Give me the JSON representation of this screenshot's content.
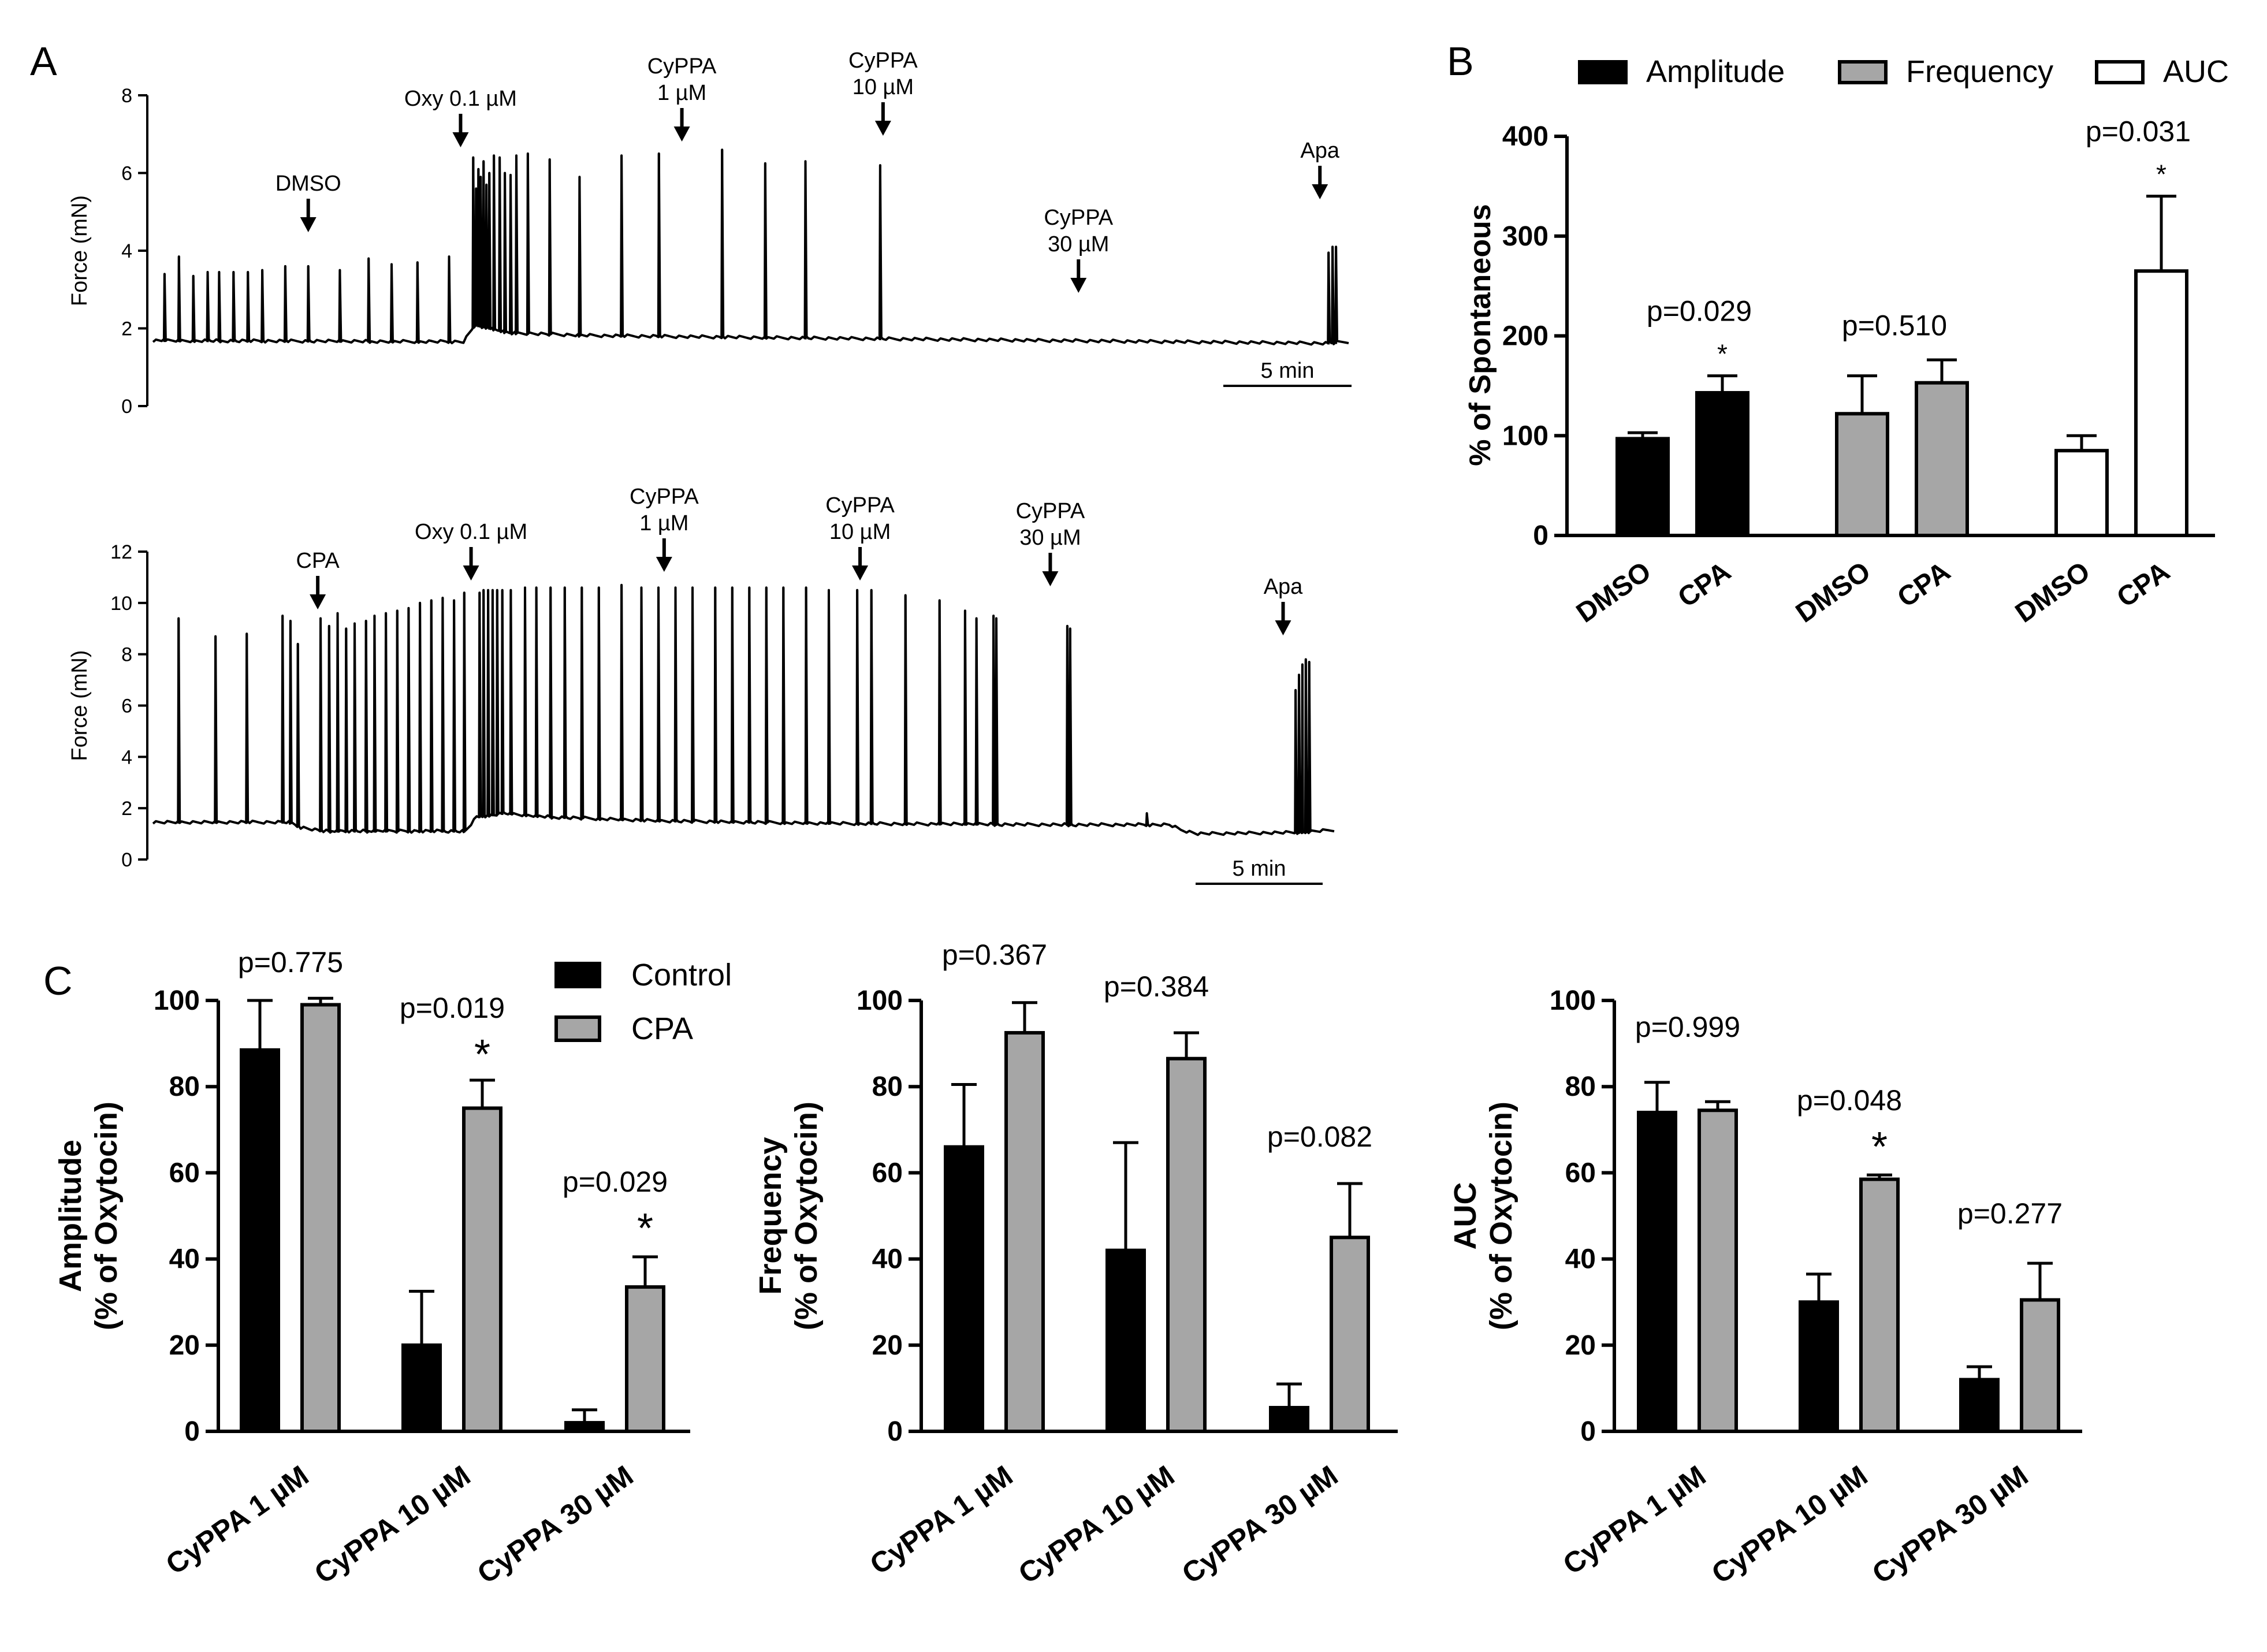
{
  "colors": {
    "black": "#000000",
    "gray": "#a6a6a6",
    "white": "#ffffff"
  },
  "panel_labels": [
    "A",
    "B",
    "C"
  ],
  "chart_data": [
    {
      "id": "A_top",
      "type": "line",
      "title": "",
      "ylabel": "Force (mN)",
      "ylim": [
        0,
        8
      ],
      "yticks": [
        0,
        2,
        4,
        6,
        8
      ],
      "xlim": [
        0,
        2080
      ],
      "scalebar": "5 min",
      "baseline": [
        [
          0,
          1.65
        ],
        [
          540,
          1.62
        ],
        [
          560,
          2.05
        ],
        [
          620,
          1.85
        ],
        [
          760,
          1.78
        ],
        [
          1100,
          1.72
        ],
        [
          1500,
          1.66
        ],
        [
          2040,
          1.58
        ],
        [
          2080,
          1.62
        ]
      ],
      "peaks": [
        [
          20,
          3.4
        ],
        [
          45,
          3.85
        ],
        [
          70,
          3.35
        ],
        [
          95,
          3.45
        ],
        [
          115,
          3.45
        ],
        [
          140,
          3.45
        ],
        [
          165,
          3.45
        ],
        [
          190,
          3.5
        ],
        [
          230,
          3.6
        ],
        [
          270,
          3.6
        ],
        [
          325,
          3.5
        ],
        [
          375,
          3.8
        ],
        [
          415,
          3.65
        ],
        [
          460,
          3.7
        ],
        [
          515,
          3.85
        ],
        [
          557,
          6.4
        ],
        [
          562,
          5.6
        ],
        [
          566,
          6.1
        ],
        [
          570,
          5.9
        ],
        [
          575,
          6.3
        ],
        [
          580,
          5.7
        ],
        [
          585,
          6.0
        ],
        [
          593,
          6.45
        ],
        [
          603,
          6.4
        ],
        [
          612,
          6.0
        ],
        [
          622,
          5.95
        ],
        [
          632,
          6.45
        ],
        [
          652,
          6.5
        ],
        [
          690,
          6.35
        ],
        [
          742,
          5.9
        ],
        [
          815,
          6.45
        ],
        [
          880,
          6.5
        ],
        [
          990,
          6.6
        ],
        [
          1065,
          6.25
        ],
        [
          1135,
          6.3
        ],
        [
          1265,
          6.2
        ],
        [
          2045,
          3.95
        ],
        [
          2052,
          4.1
        ],
        [
          2058,
          4.1
        ]
      ],
      "annotations": [
        {
          "text": [
            "DMSO"
          ],
          "x": 270
        },
        {
          "text": [
            "Oxy 0.1 µM"
          ],
          "x": 535
        },
        {
          "text": [
            "CyPPA",
            "1 µM"
          ],
          "x": 920
        },
        {
          "text": [
            "CyPPA",
            "10 µM"
          ],
          "x": 1270
        },
        {
          "text": [
            "CyPPA",
            "30 µM"
          ],
          "x": 1610
        },
        {
          "text": [
            "Apa"
          ],
          "x": 2030
        }
      ]
    },
    {
      "id": "A_bottom",
      "type": "line",
      "title": "",
      "ylabel": "Force (mN)",
      "ylim": [
        0,
        12
      ],
      "yticks": [
        0,
        2,
        4,
        6,
        8,
        10,
        12
      ],
      "xlim": [
        0,
        2080
      ],
      "scalebar": "5 min",
      "baseline": [
        [
          0,
          1.4
        ],
        [
          240,
          1.4
        ],
        [
          260,
          1.2
        ],
        [
          300,
          1.05
        ],
        [
          550,
          1.05
        ],
        [
          570,
          1.6
        ],
        [
          620,
          1.75
        ],
        [
          700,
          1.6
        ],
        [
          900,
          1.45
        ],
        [
          1200,
          1.35
        ],
        [
          1600,
          1.3
        ],
        [
          1790,
          1.3
        ],
        [
          1810,
          1.1
        ],
        [
          1840,
          0.95
        ],
        [
          2020,
          1.0
        ],
        [
          2080,
          1.1
        ]
      ],
      "peaks": [
        [
          45,
          9.4
        ],
        [
          110,
          8.7
        ],
        [
          165,
          8.8
        ],
        [
          228,
          9.5
        ],
        [
          242,
          9.3
        ],
        [
          255,
          8.4
        ],
        [
          295,
          9.4
        ],
        [
          310,
          9.1
        ],
        [
          325,
          9.6
        ],
        [
          340,
          9.0
        ],
        [
          355,
          9.2
        ],
        [
          375,
          9.3
        ],
        [
          390,
          9.5
        ],
        [
          410,
          9.6
        ],
        [
          430,
          9.7
        ],
        [
          450,
          9.8
        ],
        [
          470,
          10.0
        ],
        [
          490,
          10.1
        ],
        [
          510,
          10.2
        ],
        [
          530,
          10.1
        ],
        [
          548,
          10.4
        ],
        [
          575,
          10.4
        ],
        [
          582,
          10.5
        ],
        [
          590,
          10.5
        ],
        [
          598,
          10.5
        ],
        [
          606,
          10.5
        ],
        [
          615,
          10.5
        ],
        [
          630,
          10.5
        ],
        [
          655,
          10.6
        ],
        [
          675,
          10.6
        ],
        [
          700,
          10.6
        ],
        [
          725,
          10.6
        ],
        [
          755,
          10.6
        ],
        [
          785,
          10.6
        ],
        [
          825,
          10.7
        ],
        [
          860,
          10.6
        ],
        [
          890,
          10.6
        ],
        [
          920,
          10.6
        ],
        [
          950,
          10.6
        ],
        [
          990,
          10.6
        ],
        [
          1020,
          10.6
        ],
        [
          1050,
          10.6
        ],
        [
          1080,
          10.6
        ],
        [
          1110,
          10.6
        ],
        [
          1150,
          10.6
        ],
        [
          1190,
          10.5
        ],
        [
          1240,
          10.5
        ],
        [
          1265,
          10.5
        ],
        [
          1325,
          10.3
        ],
        [
          1385,
          10.1
        ],
        [
          1430,
          9.7
        ],
        [
          1450,
          9.4
        ],
        [
          1480,
          9.5
        ],
        [
          1485,
          9.4
        ],
        [
          1610,
          9.1
        ],
        [
          1615,
          9.0
        ],
        [
          1750,
          1.8
        ],
        [
          2012,
          6.6
        ],
        [
          2018,
          7.2
        ],
        [
          2024,
          7.6
        ],
        [
          2030,
          7.8
        ],
        [
          2036,
          7.7
        ]
      ],
      "annotations": [
        {
          "text": [
            "CPA"
          ],
          "x": 290
        },
        {
          "text": [
            "Oxy 0.1 µM"
          ],
          "x": 560
        },
        {
          "text": [
            "CyPPA",
            "1 µM"
          ],
          "x": 900
        },
        {
          "text": [
            "CyPPA",
            "10 µM"
          ],
          "x": 1245
        },
        {
          "text": [
            "CyPPA",
            "30 µM"
          ],
          "x": 1580
        },
        {
          "text": [
            "Apa"
          ],
          "x": 1990
        }
      ]
    },
    {
      "id": "B",
      "type": "bar",
      "title": "",
      "xlabel": "",
      "ylabel": "% of Spontaneous",
      "ylim": [
        0,
        400
      ],
      "yticks": [
        0,
        100,
        200,
        300,
        400
      ],
      "legend": [
        {
          "name": "Amplitude",
          "color": "#000000"
        },
        {
          "name": "Frequency",
          "color": "#a6a6a6"
        },
        {
          "name": "AUC",
          "color": "#ffffff"
        }
      ],
      "groups": [
        {
          "metric": "Amplitude",
          "color": "#000000",
          "categories": [
            "DMSO",
            "CPA"
          ],
          "values": [
            97,
            143
          ],
          "errors": [
            6,
            17
          ],
          "pvalue": "p=0.029",
          "star": "*"
        },
        {
          "metric": "Frequency",
          "color": "#a6a6a6",
          "categories": [
            "DMSO",
            "CPA"
          ],
          "values": [
            122,
            153
          ],
          "errors": [
            38,
            23
          ],
          "pvalue": "p=0.510",
          "star": ""
        },
        {
          "metric": "AUC",
          "color": "#ffffff",
          "categories": [
            "DMSO",
            "CPA"
          ],
          "values": [
            85,
            265
          ],
          "errors": [
            15,
            75
          ],
          "pvalue": "p=0.031",
          "star": "*"
        }
      ]
    },
    {
      "id": "C_amplitude",
      "type": "bar",
      "title": "",
      "xlabel": "",
      "ylabel": [
        "Amplitude",
        "(% of Oxytocin)"
      ],
      "ylim": [
        0,
        100
      ],
      "yticks": [
        0,
        20,
        40,
        60,
        80,
        100
      ],
      "categories": [
        "CyPPA 1 µM",
        "CyPPA 10 µM",
        "CyPPA 30 µM"
      ],
      "legend": [
        {
          "name": "Control",
          "color": "#000000"
        },
        {
          "name": "CPA",
          "color": "#a6a6a6"
        }
      ],
      "series": [
        {
          "name": "Control",
          "values": [
            88.5,
            20,
            2
          ],
          "errors": [
            11.5,
            12.5,
            3
          ],
          "color": "#000000"
        },
        {
          "name": "CPA",
          "values": [
            99,
            75,
            33.5
          ],
          "errors": [
            1.5,
            6.5,
            7
          ],
          "color": "#a6a6a6"
        }
      ],
      "pvalues": [
        "p=0.775",
        "p=0.019",
        "p=0.029"
      ],
      "stars": [
        "",
        "*",
        "*"
      ]
    },
    {
      "id": "C_frequency",
      "type": "bar",
      "title": "",
      "xlabel": "",
      "ylabel": [
        "Frequency",
        "(% of Oxytocin)"
      ],
      "ylim": [
        0,
        100
      ],
      "yticks": [
        0,
        20,
        40,
        60,
        80,
        100
      ],
      "categories": [
        "CyPPA 1 µM",
        "CyPPA 10 µM",
        "CyPPA 30 µM"
      ],
      "series": [
        {
          "name": "Control",
          "values": [
            66,
            42,
            5.5
          ],
          "errors": [
            14.5,
            25,
            5.5
          ],
          "color": "#000000"
        },
        {
          "name": "CPA",
          "values": [
            92.5,
            86.5,
            45
          ],
          "errors": [
            7,
            6,
            12.5
          ],
          "color": "#a6a6a6"
        }
      ],
      "pvalues": [
        "p=0.367",
        "p=0.384",
        "p=0.082"
      ],
      "stars": [
        "",
        "",
        ""
      ]
    },
    {
      "id": "C_auc",
      "type": "bar",
      "title": "",
      "xlabel": "",
      "ylabel": [
        "AUC",
        "(% of Oxytocin)"
      ],
      "ylim": [
        0,
        100
      ],
      "yticks": [
        0,
        20,
        40,
        60,
        80,
        100
      ],
      "categories": [
        "CyPPA 1 µM",
        "CyPPA 10 µM",
        "CyPPA 30 µM"
      ],
      "series": [
        {
          "name": "Control",
          "values": [
            74,
            30,
            12
          ],
          "errors": [
            7,
            6.5,
            3
          ],
          "color": "#000000"
        },
        {
          "name": "CPA",
          "values": [
            74.5,
            58.5,
            30.5
          ],
          "errors": [
            2,
            1,
            8.5
          ],
          "color": "#a6a6a6"
        }
      ],
      "pvalues": [
        "p=0.999",
        "p=0.048",
        "p=0.277"
      ],
      "stars": [
        "",
        "*",
        ""
      ]
    }
  ]
}
